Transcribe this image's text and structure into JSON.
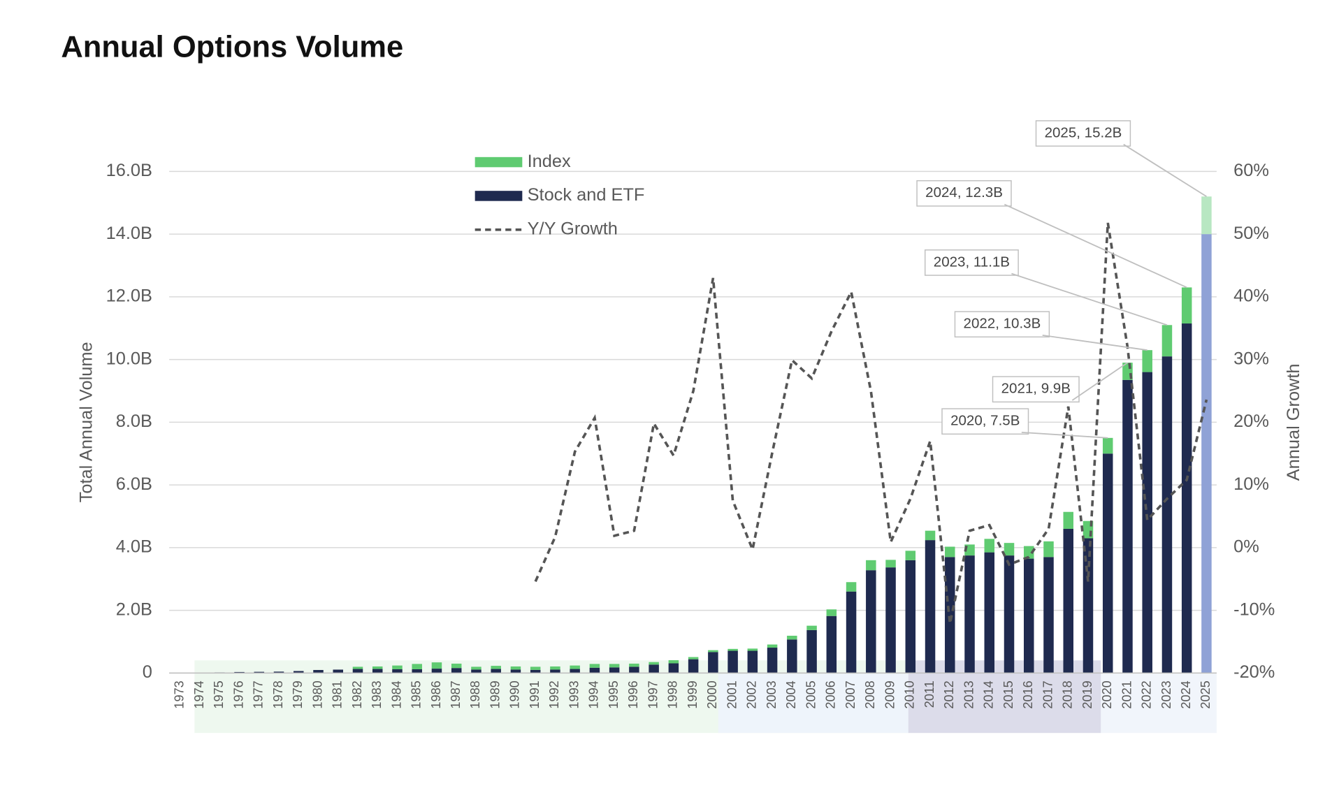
{
  "chart_data": {
    "type": "bar",
    "title": "Annual Options Volume",
    "y_label": "Total Annual Volume",
    "y2_label": "Annual Growth",
    "categories": [
      "1973",
      "1974",
      "1975",
      "1976",
      "1977",
      "1978",
      "1979",
      "1980",
      "1981",
      "1982",
      "1983",
      "1984",
      "1985",
      "1986",
      "1987",
      "1988",
      "1989",
      "1990",
      "1991",
      "1992",
      "1993",
      "1994",
      "1995",
      "1996",
      "1997",
      "1998",
      "1999",
      "2000",
      "2001",
      "2002",
      "2003",
      "2004",
      "2005",
      "2006",
      "2007",
      "2008",
      "2009",
      "2010",
      "2011",
      "2012",
      "2013",
      "2014",
      "2015",
      "2016",
      "2017",
      "2018",
      "2019",
      "2020",
      "2021",
      "2022",
      "2023",
      "2024",
      "2025"
    ],
    "stacked": true,
    "grid": true,
    "legend": "top",
    "highlight_category": "2025",
    "series": [
      {
        "name": "Index",
        "color": "#5fcb71",
        "highlight_color": "#b8e7c2",
        "values": [
          0,
          0,
          0,
          0,
          0,
          0,
          0,
          0,
          0,
          0.07,
          0.08,
          0.12,
          0.17,
          0.2,
          0.14,
          0.09,
          0.1,
          0.1,
          0.1,
          0.1,
          0.11,
          0.12,
          0.11,
          0.1,
          0.08,
          0.1,
          0.07,
          0.06,
          0.06,
          0.07,
          0.1,
          0.12,
          0.14,
          0.21,
          0.3,
          0.32,
          0.24,
          0.3,
          0.3,
          0.33,
          0.35,
          0.43,
          0.4,
          0.4,
          0.5,
          0.54,
          0.55,
          0.5,
          0.55,
          0.7,
          1.0,
          1.15,
          1.2
        ]
      },
      {
        "name": "Stock and ETF",
        "color": "#1f2a4f",
        "highlight_color": "#8fa2d6",
        "values": [
          0.001,
          0.006,
          0.018,
          0.033,
          0.039,
          0.045,
          0.064,
          0.097,
          0.109,
          0.13,
          0.13,
          0.12,
          0.12,
          0.14,
          0.16,
          0.11,
          0.13,
          0.11,
          0.1,
          0.11,
          0.13,
          0.17,
          0.18,
          0.2,
          0.27,
          0.31,
          0.44,
          0.67,
          0.71,
          0.71,
          0.81,
          1.07,
          1.37,
          1.82,
          2.6,
          3.28,
          3.37,
          3.6,
          4.24,
          3.7,
          3.75,
          3.85,
          3.75,
          3.65,
          3.7,
          4.6,
          4.3,
          7.0,
          9.35,
          9.6,
          10.1,
          11.15,
          14.0
        ]
      },
      {
        "name": "Y/Y Growth",
        "type": "line",
        "axis": "y2",
        "color": "#555555",
        "dashed": true,
        "values": [
          null,
          null,
          null,
          null,
          null,
          null,
          null,
          null,
          null,
          null,
          null,
          null,
          null,
          null,
          null,
          null,
          null,
          null,
          -5.4,
          1.7,
          15.3,
          20.7,
          1.9,
          2.7,
          19.8,
          14.7,
          25,
          43,
          7.5,
          -0.3,
          15.2,
          29.9,
          27,
          34.5,
          40.8,
          24.9,
          0.9,
          7.8,
          17,
          -12.1,
          2.7,
          3.6,
          -2.7,
          -1.5,
          3,
          22.5,
          -5.4,
          51.8,
          32,
          4.4,
          7.8,
          10.8,
          23.6
        ]
      }
    ],
    "ylim": [
      0,
      16
    ],
    "yticks": [
      0,
      {
        "value": 2,
        "label": "2.0B"
      },
      {
        "value": 4,
        "label": "4.0B"
      },
      {
        "value": 6,
        "label": "6.0B"
      },
      {
        "value": 8,
        "label": "8.0B"
      },
      {
        "value": 10,
        "label": "10.0B"
      },
      {
        "value": 12,
        "label": "12.0B"
      },
      {
        "value": 14,
        "label": "14.0B"
      },
      {
        "value": 16,
        "label": "16.0B"
      }
    ],
    "y2lim": [
      -20,
      60
    ],
    "y2ticks": [
      {
        "value": -20,
        "label": "-20%"
      },
      {
        "value": -10,
        "label": "-10%"
      },
      {
        "value": 0,
        "label": "0%"
      },
      {
        "value": 10,
        "label": "10%"
      },
      {
        "value": 20,
        "label": "20%"
      },
      {
        "value": 30,
        "label": "30%"
      },
      {
        "value": 40,
        "label": "40%"
      },
      {
        "value": 50,
        "label": "50%"
      },
      {
        "value": 60,
        "label": "60%"
      }
    ],
    "annotations": [
      {
        "category": "2020",
        "value": 7.5,
        "label": "2020, 7.5B"
      },
      {
        "category": "2021",
        "value": 9.9,
        "label": "2021, 9.9B"
      },
      {
        "category": "2022",
        "value": 10.3,
        "label": "2022, 10.3B"
      },
      {
        "category": "2023",
        "value": 11.1,
        "label": "2023, 11.1B"
      },
      {
        "category": "2024",
        "value": 12.3,
        "label": "2024, 12.3B"
      },
      {
        "category": "2025",
        "value": 15.2,
        "label": "2025, 15.2B"
      }
    ]
  }
}
